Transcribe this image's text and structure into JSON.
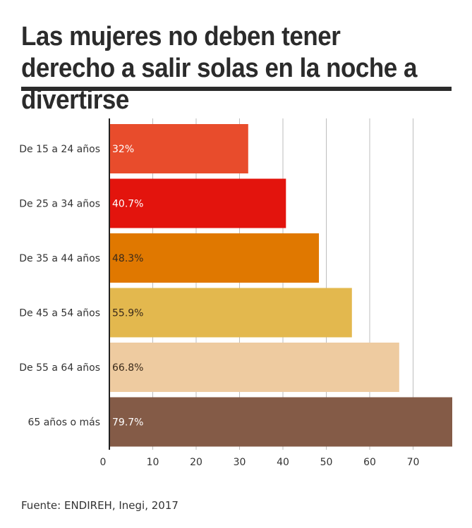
{
  "title": "Las mujeres no deben tener derecho a salir solas en la noche a divertirse",
  "source": "Fuente: ENDIREH, Inegi, 2017",
  "chart_data": {
    "type": "bar",
    "orientation": "horizontal",
    "categories": [
      "De 15 a 24 años",
      "De 25 a 34 años",
      "De 35 a 44 años",
      "De 45 a 54 años",
      "De 55 a 64 años",
      "65 años o más"
    ],
    "values": [
      32,
      40.7,
      48.3,
      55.9,
      66.8,
      79.7
    ],
    "value_labels": [
      "32%",
      "40.7%",
      "48.3%",
      "55.9%",
      "66.8%",
      "79.7%"
    ],
    "bar_colors": [
      "#e84c2c",
      "#e3140d",
      "#e07800",
      "#e3b84e",
      "#eecba0",
      "#845b47"
    ],
    "label_colors": [
      "#ffffff",
      "#ffffff",
      "#3a2a1a",
      "#3a2a1a",
      "#3a2a1a",
      "#ffffff"
    ],
    "xticks": [
      0,
      10,
      20,
      30,
      40,
      50,
      60,
      70
    ],
    "xlim": [
      0,
      80
    ],
    "grid": true
  }
}
